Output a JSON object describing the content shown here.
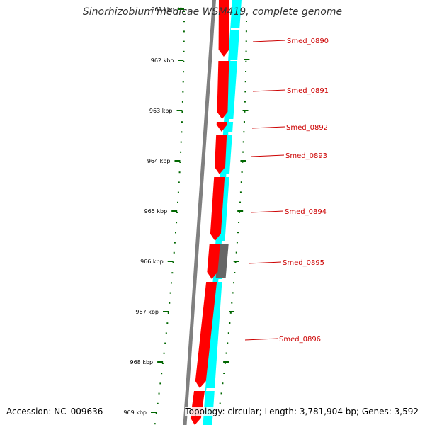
{
  "title": "Sinorhizobium medicae WSM419, complete genome",
  "accession": "Accession: NC_009636",
  "topology": "Topology: circular; Length: 3,781,904 bp; Genes: 3,592",
  "ruler": {
    "labels": [
      "961 kbp",
      "962 kbp",
      "963 kbp",
      "964 kbp",
      "965 kbp",
      "966 kbp",
      "967 kbp",
      "968 kbp",
      "969 kbp"
    ]
  },
  "genes": [
    {
      "label": "Smed_0890"
    },
    {
      "label": "Smed_0891"
    },
    {
      "label": "Smed_0892"
    },
    {
      "label": "Smed_0893"
    },
    {
      "label": "Smed_0894"
    },
    {
      "label": "Smed_0895"
    },
    {
      "label": "Smed_0896"
    }
  ],
  "colors": {
    "forward_cds": "#ff0000",
    "reverse_band": "#00ffff",
    "grey_feature": "#666666",
    "backbone": "#808080",
    "ruler": "#006600",
    "label": "#cc0000"
  }
}
